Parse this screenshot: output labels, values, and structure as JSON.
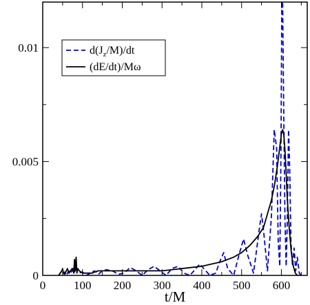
{
  "chart_data": {
    "type": "line",
    "title": "",
    "xlabel": "t/M",
    "ylabel": "",
    "xlim": [
      0,
      665
    ],
    "ylim": [
      0,
      0.012
    ],
    "x_ticks": [
      0,
      100,
      200,
      300,
      400,
      500,
      600
    ],
    "x_tick_labels": [
      "0",
      "100",
      "200",
      "300",
      "400",
      "500",
      "600"
    ],
    "y_ticks": [
      0,
      0.005,
      0.01
    ],
    "y_tick_labels": [
      "0",
      "0.005",
      "0.01"
    ],
    "grid": false,
    "legend_position": "top-left",
    "series": [
      {
        "name": "d(J_z/M)/dt",
        "legend_main": "d(J",
        "legend_sub": "z",
        "legend_rest": "/M)/dt",
        "color": "#0000cc",
        "style": "dashed",
        "x": [
          40,
          48,
          52,
          56,
          60,
          65,
          70,
          76,
          80,
          83,
          86,
          90,
          100,
          110,
          120,
          130,
          140,
          150,
          160,
          175,
          190,
          205,
          220,
          235,
          250,
          265,
          280,
          295,
          310,
          325,
          340,
          355,
          370,
          385,
          395,
          405,
          420,
          435,
          445,
          455,
          465,
          480,
          495,
          505,
          515,
          530,
          545,
          550,
          555,
          565,
          575,
          582,
          588,
          592,
          596,
          599,
          601,
          603,
          606,
          609,
          612,
          615,
          618,
          621,
          624,
          628,
          632,
          636,
          640,
          645,
          650
        ],
        "y": [
          0.0,
          0.0002,
          0.0001,
          0.00015,
          0.0,
          0.0002,
          0.0001,
          0.0003,
          0.00015,
          0.0004,
          0.0002,
          0.0001,
          0.00015,
          0.0,
          0.0001,
          0.0002,
          5e-05,
          0.0002,
          0.00025,
          0.0002,
          5e-05,
          0.0001,
          0.00035,
          0.0002,
          0.0,
          0.00025,
          0.0004,
          0.0002,
          0.0,
          0.0003,
          0.0004,
          0.0001,
          0.0,
          0.0003,
          0.0005,
          0.0003,
          0.0,
          0.0001,
          0.0006,
          0.001,
          0.0003,
          0.0,
          0.001,
          0.0016,
          0.0009,
          0.0001,
          0.0021,
          0.0027,
          0.002,
          0.0002,
          0.0026,
          0.0064,
          0.0056,
          0.0015,
          0.0004,
          0.0055,
          0.0119,
          0.0122,
          0.007,
          0.0025,
          0.0004,
          0.0025,
          0.0064,
          0.0046,
          0.0015,
          0.0004,
          0.0012,
          0.0002,
          0.0008,
          0.0001,
          0.0
        ]
      },
      {
        "name": "(dE/dt)/Mω",
        "legend_main": "(dE/dt)/Mω",
        "color": "#000000",
        "style": "solid",
        "x": [
          40,
          48,
          50,
          52,
          55,
          58,
          62,
          66,
          70,
          74,
          78,
          80,
          82,
          84,
          86,
          88,
          92,
          100,
          110,
          125,
          130,
          140,
          160,
          200,
          250,
          300,
          350,
          400,
          450,
          480,
          500,
          520,
          540,
          555,
          565,
          575,
          583,
          590,
          595,
          600,
          603,
          606,
          609,
          612,
          615,
          620,
          625,
          630,
          635,
          640,
          650
        ],
        "y": [
          0.0,
          0.0002,
          0.0003,
          0.0001,
          5e-05,
          0.00015,
          0.0003,
          0.0001,
          0.0002,
          0.0003,
          0.0001,
          0.0007,
          0.0002,
          0.0008,
          0.0001,
          0.0003,
          0.0002,
          0.0001,
          0.0001,
          0.0001,
          0.00015,
          0.0002,
          0.0002,
          0.0002,
          0.0002,
          0.0002,
          0.0003,
          0.0004,
          0.0006,
          0.0008,
          0.001,
          0.0013,
          0.0017,
          0.0021,
          0.0027,
          0.0033,
          0.004,
          0.0048,
          0.0055,
          0.0062,
          0.0064,
          0.0062,
          0.0055,
          0.0045,
          0.0033,
          0.002,
          0.001,
          0.0004,
          0.0001,
          0.0,
          0.0
        ]
      }
    ]
  }
}
